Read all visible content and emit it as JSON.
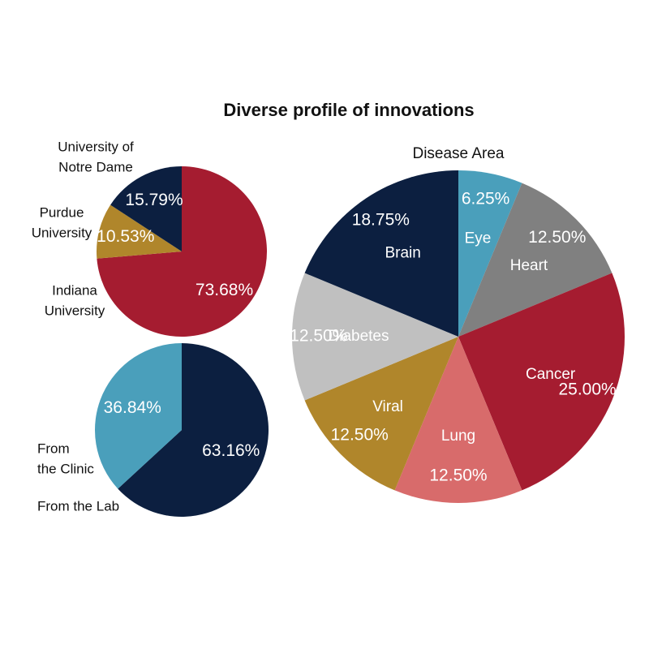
{
  "title": "Diverse profile of innovations",
  "chart_data": [
    {
      "type": "pie",
      "categories": [
        "Indiana\nUniversity",
        "Purdue\nUniversity",
        "University of\nNotre Dame"
      ],
      "values": [
        73.68,
        10.53,
        15.79
      ],
      "value_labels": [
        "73.68%",
        "10.53%",
        "15.79%"
      ],
      "colors": [
        "#a51c30",
        "#b0862b",
        "#0c1f40"
      ]
    },
    {
      "type": "pie",
      "categories": [
        "From the Lab",
        "From\nthe Clinic"
      ],
      "values": [
        63.16,
        36.84
      ],
      "value_labels": [
        "63.16%",
        "36.84%"
      ],
      "colors": [
        "#0c1f40",
        "#4a9fbb"
      ]
    },
    {
      "type": "pie",
      "title": "Disease Area",
      "categories": [
        "Eye",
        "Heart",
        "Cancer",
        "Lung",
        "Viral",
        "Diabetes",
        "Brain"
      ],
      "values": [
        6.25,
        12.5,
        25,
        12.5,
        12.5,
        12.5,
        18.75
      ],
      "value_labels": [
        "6.25%",
        "12.50%",
        "25.00%",
        "12.50%",
        "12.50%",
        "12.50%",
        "18.75%"
      ],
      "colors": [
        "#4a9fbb",
        "#808080",
        "#a51c30",
        "#d86b6b",
        "#b0862b",
        "#c0c0c0",
        "#0c1f40"
      ]
    }
  ]
}
